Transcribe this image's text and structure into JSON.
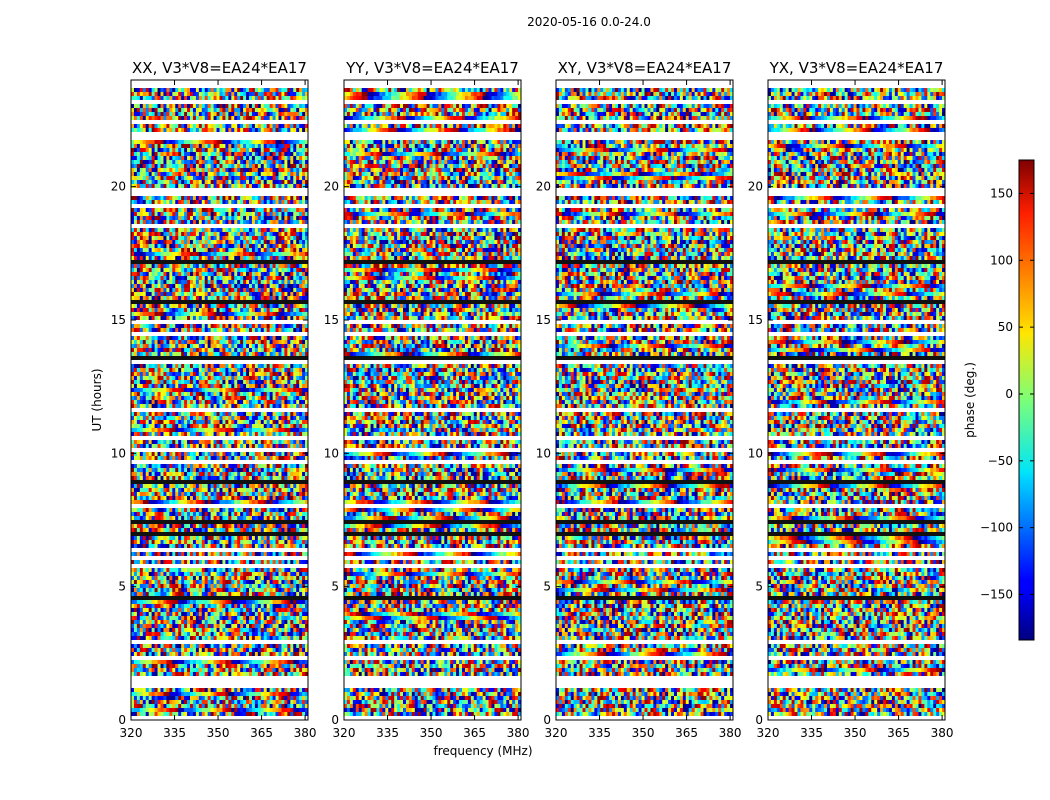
{
  "figure": {
    "suptitle": "2020-05-16 0.0-24.0"
  },
  "chart_data": [
    {
      "type": "heatmap",
      "title": "XX, V3*V8=EA24*EA17",
      "xlabel": "frequency (MHz)",
      "ylabel": "UT (hours)",
      "xlim": [
        320,
        381
      ],
      "ylim": [
        0,
        24
      ],
      "xticks": [
        "320",
        "335",
        "350",
        "365",
        "380"
      ],
      "xtick_values": [
        320,
        335,
        350,
        365,
        380
      ],
      "yticks": [
        "0",
        "5",
        "10",
        "15",
        "20"
      ],
      "ytick_values": [
        0,
        5,
        10,
        15,
        20
      ],
      "value_label": "phase (deg.)",
      "value_range": [
        -180,
        180
      ]
    },
    {
      "type": "heatmap",
      "title": "YY, V3*V8=EA24*EA17",
      "xlabel": "frequency (MHz)",
      "ylabel": "",
      "xlim": [
        320,
        381
      ],
      "ylim": [
        0,
        24
      ],
      "xticks": [
        "320",
        "335",
        "350",
        "365",
        "380"
      ],
      "xtick_values": [
        320,
        335,
        350,
        365,
        380
      ],
      "yticks": [
        "0",
        "5",
        "10",
        "15",
        "20"
      ],
      "ytick_values": [
        0,
        5,
        10,
        15,
        20
      ],
      "value_label": "phase (deg.)",
      "value_range": [
        -180,
        180
      ]
    },
    {
      "type": "heatmap",
      "title": "XY, V3*V8=EA24*EA17",
      "xlabel": "frequency (MHz)",
      "ylabel": "",
      "xlim": [
        320,
        381
      ],
      "ylim": [
        0,
        24
      ],
      "xticks": [
        "320",
        "335",
        "350",
        "365",
        "380"
      ],
      "xtick_values": [
        320,
        335,
        350,
        365,
        380
      ],
      "yticks": [
        "0",
        "5",
        "10",
        "15",
        "20"
      ],
      "ytick_values": [
        0,
        5,
        10,
        15,
        20
      ],
      "value_label": "phase (deg.)",
      "value_range": [
        -180,
        180
      ]
    },
    {
      "type": "heatmap",
      "title": "YX, V3*V8=EA24*EA17",
      "xlabel": "frequency (MHz)",
      "ylabel": "",
      "xlim": [
        320,
        381
      ],
      "ylim": [
        0,
        24
      ],
      "xticks": [
        "320",
        "335",
        "350",
        "365",
        "380"
      ],
      "xtick_values": [
        320,
        335,
        350,
        365,
        380
      ],
      "yticks": [
        "0",
        "5",
        "10",
        "15",
        "20"
      ],
      "ytick_values": [
        0,
        5,
        10,
        15,
        20
      ],
      "value_label": "phase (deg.)",
      "value_range": [
        -180,
        180
      ]
    }
  ],
  "colorbar": {
    "label": "phase (deg.)",
    "range": [
      -184,
      175
    ],
    "ticks": [
      "−150",
      "−100",
      "−50",
      "0",
      "50",
      "100",
      "150"
    ],
    "tick_values": [
      -150,
      -100,
      -50,
      0,
      50,
      100,
      150
    ],
    "colormap": "jet"
  },
  "shared": {
    "xlabel": "frequency (MHz)",
    "ylabel": "UT (hours)"
  }
}
